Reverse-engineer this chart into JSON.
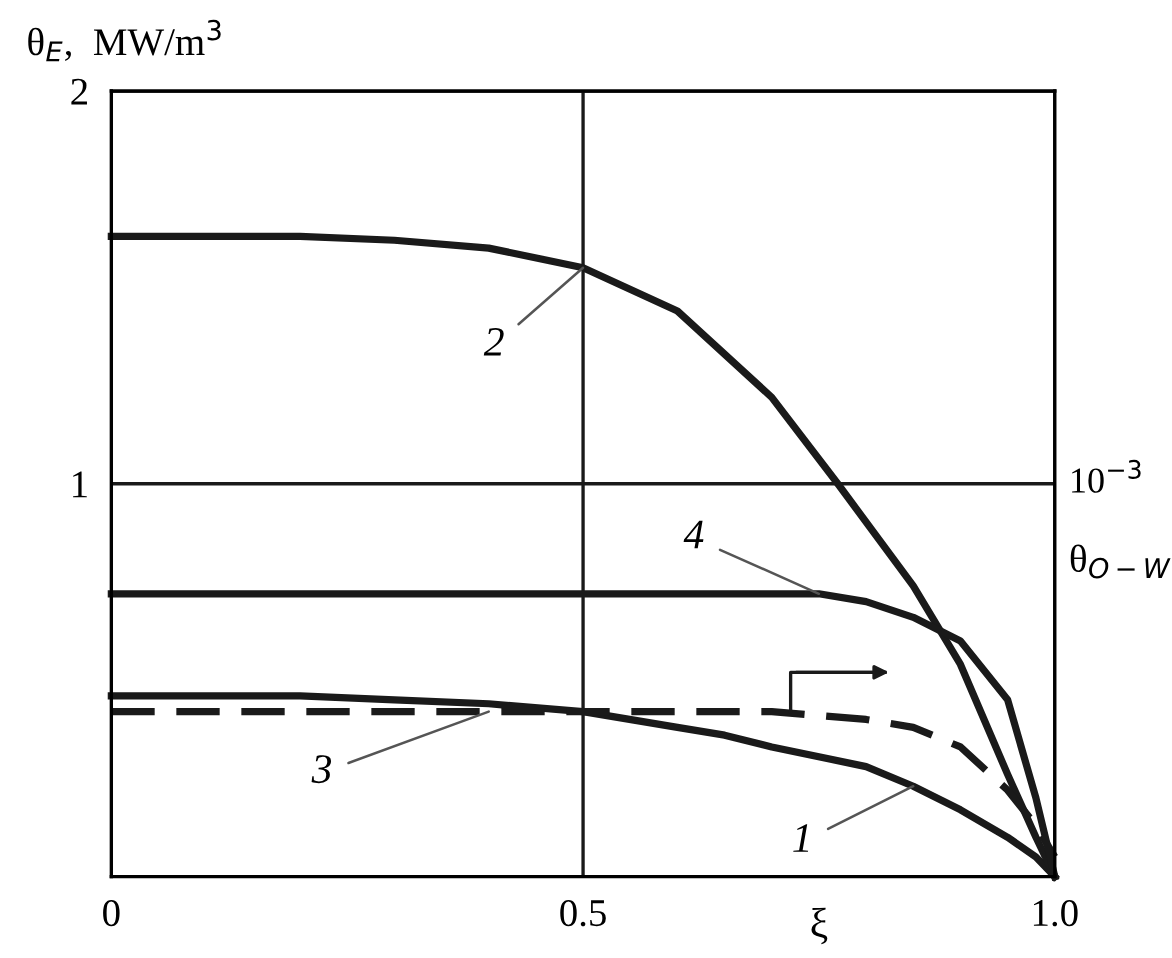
{
  "chart_data": {
    "type": "line",
    "xlabel": "ξ",
    "ylabel": "θ$_{E}$,  MW/m$^{3}$",
    "annotations": [
      "10$^{−3}$",
      "θ$_{O−W}$"
    ],
    "xlim": [
      0,
      1.0
    ],
    "ylim": [
      0,
      2
    ],
    "xticks": [
      0,
      0.5,
      {
        "value": 1.0,
        "label": "1.0"
      }
    ],
    "yticks": [
      {
        "value": 0,
        "label": null
      },
      1,
      2
    ],
    "grid": true,
    "legend": false,
    "marker": "none",
    "series": [
      {
        "name": "1",
        "color": "#1a1a1a",
        "line_style": "solid",
        "x": [
          0,
          0.2,
          0.3,
          0.4,
          0.5,
          0.6,
          0.65,
          0.7,
          0.8,
          0.85,
          0.9,
          0.95,
          0.98,
          1.0
        ],
        "values": [
          0.46,
          0.46,
          0.45,
          0.44,
          0.42,
          0.38,
          0.36,
          0.33,
          0.28,
          0.23,
          0.17,
          0.1,
          0.05,
          0.0
        ]
      },
      {
        "name": "2",
        "color": "#1a1a1a",
        "line_style": "solid",
        "x": [
          0,
          0.2,
          0.3,
          0.4,
          0.5,
          0.6,
          0.7,
          0.77,
          0.85,
          0.9,
          0.95,
          0.98,
          1.0
        ],
        "values": [
          1.63,
          1.63,
          1.62,
          1.6,
          1.55,
          1.44,
          1.22,
          1.0,
          0.74,
          0.54,
          0.26,
          0.1,
          0.0
        ]
      },
      {
        "name": "3",
        "color": "#1a1a1a",
        "line_style": "dashed",
        "x": [
          0,
          0.2,
          0.4,
          0.5,
          0.6,
          0.7,
          0.8,
          0.85,
          0.9,
          0.95,
          0.98,
          1.0
        ],
        "values": [
          0.42,
          0.42,
          0.42,
          0.42,
          0.42,
          0.42,
          0.4,
          0.38,
          0.33,
          0.22,
          0.13,
          0.05
        ]
      },
      {
        "name": "4",
        "color": "#1a1a1a",
        "line_style": "solid",
        "x": [
          0,
          0.2,
          0.4,
          0.5,
          0.6,
          0.7,
          0.75,
          0.8,
          0.85,
          0.9,
          0.95,
          0.98,
          1.0
        ],
        "values": [
          0.72,
          0.72,
          0.72,
          0.72,
          0.72,
          0.72,
          0.72,
          0.7,
          0.66,
          0.6,
          0.45,
          0.2,
          0.0
        ]
      }
    ]
  }
}
